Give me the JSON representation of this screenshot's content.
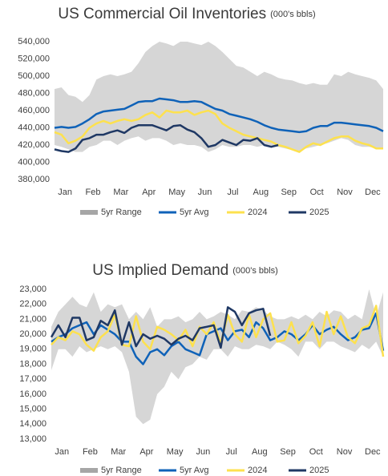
{
  "chart_data": [
    {
      "type": "line",
      "title": "US Commercial Oil Inventories",
      "units": "(000's bbls)",
      "categories": [
        "Jan",
        null,
        null,
        null,
        "Feb",
        null,
        null,
        null,
        "Mar",
        null,
        null,
        null,
        "Apr",
        null,
        null,
        null,
        "May",
        null,
        null,
        null,
        "Jun",
        null,
        null,
        null,
        "Jul",
        null,
        null,
        null,
        "Aug",
        null,
        null,
        null,
        "Sep",
        null,
        null,
        null,
        "Oct",
        null,
        null,
        null,
        "Nov",
        null,
        null,
        null,
        "Dec",
        null,
        null,
        null
      ],
      "ylim": [
        380000,
        540000
      ],
      "yticks": [
        {
          "value": 380000,
          "label": "380,000"
        },
        {
          "value": 400000,
          "label": "400,000"
        },
        {
          "value": 420000,
          "label": "420,000"
        },
        {
          "value": 440000,
          "label": "440,000"
        },
        {
          "value": 460000,
          "label": "460,000"
        },
        {
          "value": 480000,
          "label": "480,000"
        },
        {
          "value": 500000,
          "label": "500,000"
        },
        {
          "value": 520000,
          "label": "520,000"
        },
        {
          "value": 540000,
          "label": "540,000"
        }
      ],
      "legend": "bottom",
      "series": [
        {
          "name": "5yr Range",
          "color": "#d6d6d6",
          "high": [
            485000,
            487000,
            478000,
            476000,
            470000,
            478000,
            496000,
            500000,
            502000,
            500000,
            502000,
            505000,
            515000,
            528000,
            535000,
            540000,
            538000,
            535000,
            540000,
            540000,
            538000,
            536000,
            540000,
            535000,
            528000,
            520000,
            512000,
            510000,
            505000,
            500000,
            505000,
            502000,
            498000,
            496000,
            495000,
            492000,
            490000,
            492000,
            490000,
            490000,
            502000,
            500000,
            505000,
            502000,
            500000,
            498000,
            495000,
            485000
          ],
          "low": [
            420000,
            418000,
            415000,
            412000,
            412000,
            418000,
            420000,
            425000,
            425000,
            420000,
            425000,
            428000,
            430000,
            425000,
            428000,
            428000,
            425000,
            420000,
            422000,
            420000,
            420000,
            418000,
            412000,
            415000,
            420000,
            418000,
            418000,
            420000,
            420000,
            418000,
            420000,
            418000,
            418000,
            416000,
            414000,
            413000,
            416000,
            418000,
            420000,
            422000,
            425000,
            428000,
            426000,
            420000,
            418000,
            418000,
            416000,
            415000
          ]
        },
        {
          "name": "5yr Avg",
          "color": "#0f62b8",
          "values": [
            440000,
            441000,
            440000,
            441000,
            445000,
            450000,
            456000,
            459000,
            460000,
            461000,
            462000,
            466000,
            470000,
            471000,
            471000,
            474000,
            473000,
            472000,
            470000,
            470000,
            471000,
            470000,
            466000,
            462000,
            460000,
            456000,
            454000,
            452000,
            450000,
            447000,
            443000,
            440000,
            438000,
            437000,
            436000,
            435000,
            436000,
            440000,
            442000,
            442000,
            446000,
            446000,
            445000,
            444000,
            443000,
            442000,
            440000,
            436000
          ]
        },
        {
          "name": "2024",
          "color": "#fde14e",
          "values": [
            435000,
            432000,
            422000,
            425000,
            430000,
            440000,
            445000,
            448000,
            445000,
            448000,
            450000,
            448000,
            450000,
            455000,
            458000,
            452000,
            460000,
            458000,
            458000,
            460000,
            455000,
            458000,
            460000,
            456000,
            445000,
            440000,
            436000,
            432000,
            430000,
            428000,
            426000,
            424000,
            420000,
            418000,
            415000,
            412000,
            418000,
            422000,
            420000,
            424000,
            428000,
            430000,
            430000,
            425000,
            422000,
            420000,
            416000,
            416000
          ]
        },
        {
          "name": "2025",
          "color": "#1f3864",
          "values": [
            415000,
            413000,
            412000,
            416000,
            426000,
            428000,
            432000,
            432000,
            435000,
            437000,
            434000,
            440000,
            443000,
            443000,
            443000,
            440000,
            437000,
            442000,
            443000,
            438000,
            435000,
            428000,
            418000,
            420000,
            426000,
            423000,
            420000,
            426000,
            425000,
            428000,
            420000,
            418000,
            420000,
            null,
            null,
            null,
            null,
            null,
            null,
            null,
            null,
            null,
            null,
            null,
            null,
            null,
            null,
            null
          ]
        }
      ]
    },
    {
      "type": "line",
      "title": "US Implied Demand",
      "units": "(000's bbls)",
      "categories": [
        "Jan",
        null,
        null,
        null,
        "Feb",
        null,
        null,
        null,
        "Mar",
        null,
        null,
        null,
        "Apr",
        null,
        null,
        null,
        "May",
        null,
        null,
        null,
        "Jun",
        null,
        null,
        null,
        "Jul",
        null,
        null,
        null,
        "Aug",
        null,
        null,
        null,
        "Sep",
        null,
        null,
        null,
        "Oct",
        null,
        null,
        null,
        "Nov",
        null,
        null,
        null,
        "Dec",
        null,
        null,
        null
      ],
      "ylim": [
        13000,
        23000
      ],
      "yticks": [
        {
          "value": 13000,
          "label": "13,000"
        },
        {
          "value": 14000,
          "label": "14,000"
        },
        {
          "value": 15000,
          "label": "15,000"
        },
        {
          "value": 16000,
          "label": "16,000"
        },
        {
          "value": 17000,
          "label": "17,000"
        },
        {
          "value": 18000,
          "label": "18,000"
        },
        {
          "value": 19000,
          "label": "19,000"
        },
        {
          "value": 20000,
          "label": "20,000"
        },
        {
          "value": 21000,
          "label": "21,000"
        },
        {
          "value": 22000,
          "label": "22,000"
        },
        {
          "value": 23000,
          "label": "23,000"
        }
      ],
      "legend": "bottom",
      "series": [
        {
          "name": "5yr Range",
          "color": "#d6d6d6",
          "high": [
            20500,
            21500,
            22000,
            22500,
            22000,
            21800,
            22800,
            21500,
            22000,
            21800,
            22000,
            21000,
            21500,
            21000,
            21800,
            20500,
            21000,
            21000,
            21200,
            20800,
            21000,
            21500,
            21000,
            21200,
            21500,
            21300,
            21000,
            21600,
            21500,
            21800,
            21600,
            21200,
            21000,
            21000,
            21200,
            21000,
            21300,
            21000,
            21500,
            21200,
            21600,
            21500,
            21000,
            21300,
            21000,
            23000,
            21200,
            22800
          ],
          "low": [
            17600,
            19000,
            19000,
            18500,
            19200,
            18800,
            19000,
            19200,
            19000,
            19200,
            18800,
            17500,
            14500,
            14000,
            14300,
            16000,
            16500,
            17500,
            17000,
            17800,
            18000,
            18500,
            18300,
            19000,
            19000,
            18500,
            19200,
            19000,
            19000,
            19300,
            19200,
            19000,
            19500,
            19300,
            19000,
            18500,
            19500,
            19500,
            19000,
            19500,
            19500,
            19200,
            19000,
            18800,
            19300,
            19000,
            19500,
            18500
          ]
        },
        {
          "name": "5yr Avg",
          "color": "#0f62b8",
          "values": [
            19500,
            19800,
            20000,
            20400,
            20600,
            20800,
            20000,
            20600,
            20300,
            20000,
            19500,
            19500,
            18500,
            18000,
            18800,
            19000,
            18600,
            19200,
            19500,
            19000,
            18800,
            18600,
            20000,
            20200,
            20400,
            19600,
            20200,
            20300,
            19800,
            20800,
            20400,
            19600,
            19800,
            20200,
            20000,
            19600,
            20000,
            20600,
            20000,
            20300,
            20500,
            20000,
            19600,
            19800,
            20300,
            20400,
            21400,
            18900
          ]
        },
        {
          "name": "2024",
          "color": "#fde14e",
          "values": [
            19300,
            19800,
            19600,
            20200,
            20000,
            19300,
            18900,
            19800,
            20200,
            21300,
            19300,
            19200,
            21200,
            19500,
            19000,
            20500,
            20300,
            20000,
            19600,
            20300,
            19200,
            20500,
            20000,
            20800,
            19400,
            21300,
            20000,
            19500,
            21300,
            19800,
            21000,
            21400,
            19500,
            19600,
            20800,
            19400,
            19900,
            20800,
            19200,
            21500,
            20000,
            21200,
            19800,
            19400,
            20400,
            20600,
            21900,
            18500
          ]
        },
        {
          "name": "2025",
          "color": "#1f3864",
          "values": [
            19800,
            20600,
            19800,
            21100,
            21100,
            19600,
            19800,
            20900,
            20600,
            21600,
            19300,
            20800,
            19200,
            20000,
            19700,
            19900,
            19700,
            19300,
            19700,
            19900,
            19600,
            20400,
            20500,
            20600,
            19100,
            21800,
            21500,
            20600,
            21400,
            21600,
            21700,
            19900,
            null,
            null,
            null,
            null,
            null,
            null,
            null,
            null,
            null,
            null,
            null,
            null,
            null,
            null,
            null,
            null
          ]
        }
      ]
    }
  ]
}
